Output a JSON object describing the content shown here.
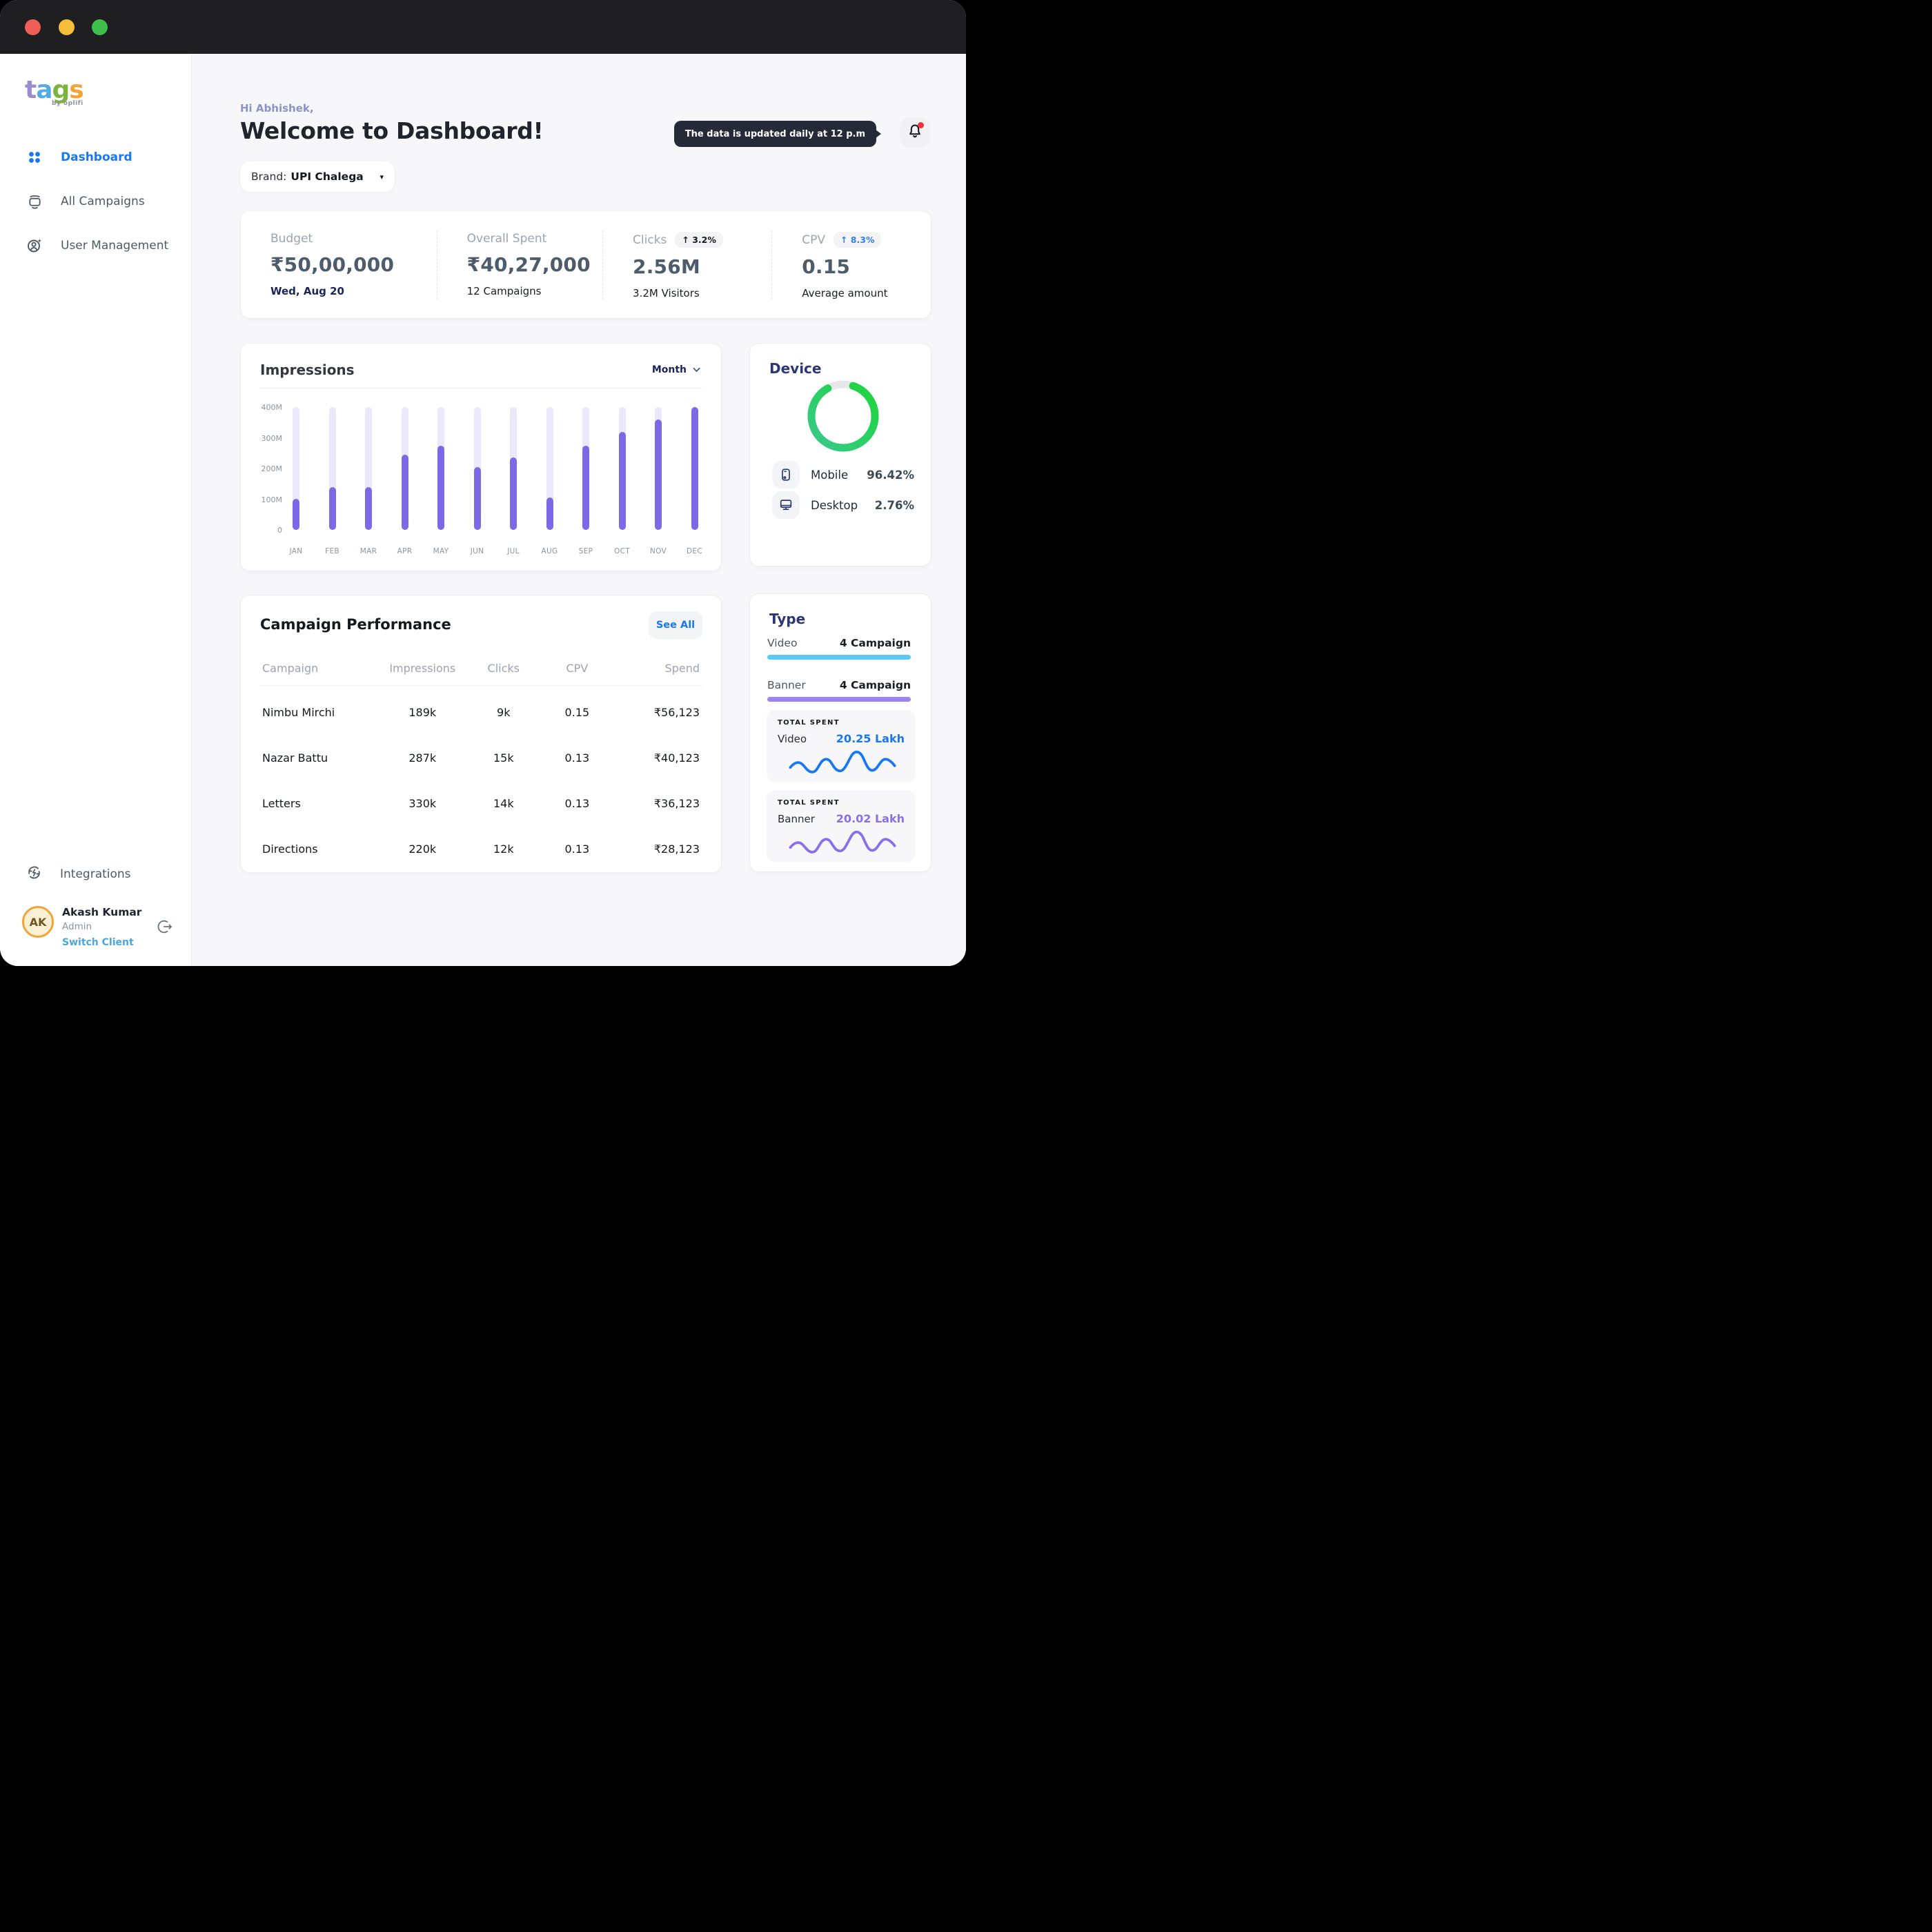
{
  "window": {
    "traffic_lights": [
      "#EF5F58",
      "#F6BD3B",
      "#3EBE4B"
    ]
  },
  "accent": {
    "primary_blue": "#1877F2",
    "purple": "#7D69E6",
    "purple_track": "#ECE8FB",
    "green_start": "#39C98B",
    "green_end": "#1ED53A",
    "sky": "#5BC8F5",
    "violet": "#9D85EF",
    "video_value": "#1877F2",
    "banner_value": "#8A6FEA"
  },
  "sidebar": {
    "logo": {
      "letters": [
        {
          "char": "t",
          "color": "#9D8CCB"
        },
        {
          "char": "a",
          "color": "#56AADF"
        },
        {
          "char": "g",
          "color": "#7CB23E"
        },
        {
          "char": "s",
          "color": "#F2A434"
        }
      ],
      "byline": "by oplifi"
    },
    "nav": [
      {
        "label": "Dashboard",
        "icon": "grid-dots-icon",
        "active": true
      },
      {
        "label": "All Campaigns",
        "icon": "campaigns-tv-icon",
        "active": false
      },
      {
        "label": "User Management",
        "icon": "user-management-icon",
        "active": false
      }
    ],
    "footer": {
      "integrations_label": "Integrations",
      "user": {
        "initials": "AK",
        "name": "Akash Kumar",
        "role": "Admin",
        "switch_label": "Switch Client"
      }
    }
  },
  "header": {
    "greeting": "Hi Abhishek,",
    "title": "Welcome to Dashboard!",
    "tooltip": "The data is updated daily at 12 p.m",
    "brand_label": "Brand:",
    "brand_value": "UPI Chalega"
  },
  "stats": [
    {
      "label": "Budget",
      "value": "₹50,00,000",
      "sub": "Wed, Aug 20",
      "sub_color": "#1B2559",
      "sub_weight": "600"
    },
    {
      "label": "Overall Spent",
      "value": "₹40,27,000",
      "sub": "12 Campaigns"
    },
    {
      "label": "Clicks",
      "badge": "↑ 3.2%",
      "badge_color": "#15181D",
      "value": "2.56M",
      "sub": "3.2M Visitors"
    },
    {
      "label": "CPV",
      "badge": "↑ 8.3%",
      "badge_color": "#2F80ED",
      "value": "0.15",
      "sub": "Average amount"
    }
  ],
  "chart_data": {
    "type": "bar",
    "title": "Impressions",
    "period_selector": "Month",
    "categories": [
      "JAN",
      "FEB",
      "MAR",
      "APR",
      "MAY",
      "JUN",
      "JUL",
      "AUG",
      "SEP",
      "OCT",
      "NOV",
      "DEC"
    ],
    "values_millions": [
      100,
      140,
      140,
      245,
      275,
      205,
      235,
      105,
      275,
      320,
      360,
      400
    ],
    "ylabel_ticks": [
      "400M",
      "300M",
      "200M",
      "100M",
      "0"
    ],
    "ylim": [
      0,
      400
    ],
    "grid": false,
    "legend": "none"
  },
  "device": {
    "title": "Device",
    "donut": {
      "type": "pie",
      "segments": [
        {
          "label": "Mobile",
          "value": 96.42,
          "icon": "mobile-icon"
        },
        {
          "label": "Desktop",
          "value": 2.76,
          "icon": "desktop-icon"
        }
      ]
    },
    "legend": [
      {
        "label": "Mobile",
        "value": "96.42%",
        "icon": "mobile-icon"
      },
      {
        "label": "Desktop",
        "value": "2.76%",
        "icon": "desktop-icon"
      }
    ]
  },
  "performance": {
    "title": "Campaign Performance",
    "see_all": "See All",
    "columns": [
      "Campaign",
      "Impressions",
      "Clicks",
      "CPV",
      "Spend"
    ],
    "rows": [
      [
        "Nimbu Mirchi",
        "189k",
        "9k",
        "0.15",
        "₹56,123"
      ],
      [
        "Nazar Battu",
        "287k",
        "15k",
        "0.13",
        "₹40,123"
      ],
      [
        "Letters",
        "330k",
        "14k",
        "0.13",
        "₹36,123"
      ],
      [
        "Directions",
        "220k",
        "12k",
        "0.13",
        "₹28,123"
      ]
    ]
  },
  "type": {
    "title": "Type",
    "rows": [
      {
        "label": "Video",
        "value": "4 Campaign",
        "color": "#5BC8F5"
      },
      {
        "label": "Banner",
        "value": "4 Campaign",
        "color": "#9D85EF"
      }
    ],
    "spent": [
      {
        "heading": "TOTAL SPENT",
        "label": "Video",
        "value": "20.25 Lakh",
        "color": "#1877F2"
      },
      {
        "heading": "TOTAL SPENT",
        "label": "Banner",
        "value": "20.02 Lakh",
        "color": "#8A6FEA"
      }
    ]
  }
}
